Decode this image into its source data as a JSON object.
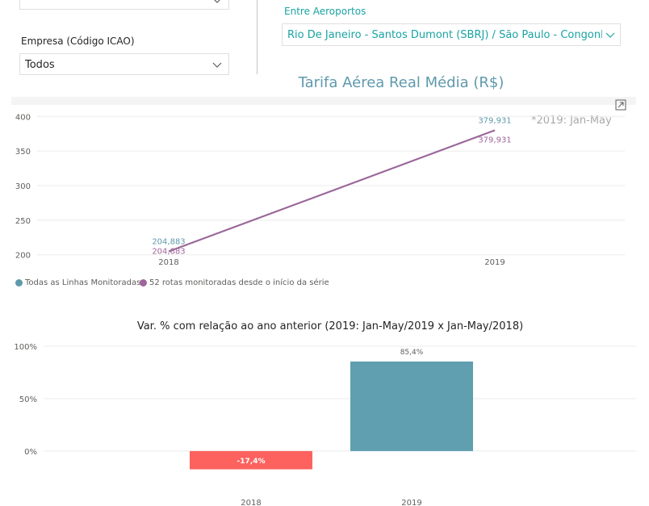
{
  "filters": {
    "empresa_label": "Empresa (Código ICAO)",
    "empresa_value": "Todos",
    "aeroportos_label": "Entre Aeroportos",
    "aeroportos_value": "Rio De Janeiro - Santos Dumont (SBRJ) / São Paulo - Congonhas..."
  },
  "line_chart_panel": {
    "note": "*2019: Jan-May",
    "legend": [
      {
        "label": "Todas as Linhas Monitoradas",
        "color": "#5f99ac"
      },
      {
        "label": "52 rotas monitoradas desde o início da série",
        "color": "#a0659a"
      }
    ]
  },
  "chart_data": [
    {
      "type": "line",
      "title": "Tarifa Aérea Real Média (R$)",
      "x": [
        "2018",
        "2019"
      ],
      "yticks": [
        200,
        250,
        300,
        350,
        400
      ],
      "ylim": [
        195,
        405
      ],
      "grid": true,
      "legend_position": "bottom-left",
      "series": [
        {
          "name": "Todas as Linhas Monitoradas",
          "values": [
            204.883,
            379.931
          ],
          "labels": [
            "204,883",
            "379,931"
          ],
          "color": "#5f99ac"
        },
        {
          "name": "52 rotas monitoradas desde o início da série",
          "values": [
            204.883,
            379.931
          ],
          "labels": [
            "204,883",
            "379,931"
          ],
          "color": "#a0659a"
        }
      ]
    },
    {
      "type": "bar",
      "title": "Var. % com relação ao ano anterior (2019: Jan-May/2019 x Jan-May/2018)",
      "categories": [
        "2018",
        "2019"
      ],
      "values": [
        -17.4,
        85.4
      ],
      "labels": [
        "-17,4%",
        "85,4%"
      ],
      "colors": [
        "#fd625e",
        "#5f9fb0"
      ],
      "yticks": [
        "0%",
        "50%",
        "100%"
      ],
      "ytick_values": [
        0,
        50,
        100
      ],
      "ylim": [
        -37,
        100
      ],
      "grid": true
    }
  ]
}
